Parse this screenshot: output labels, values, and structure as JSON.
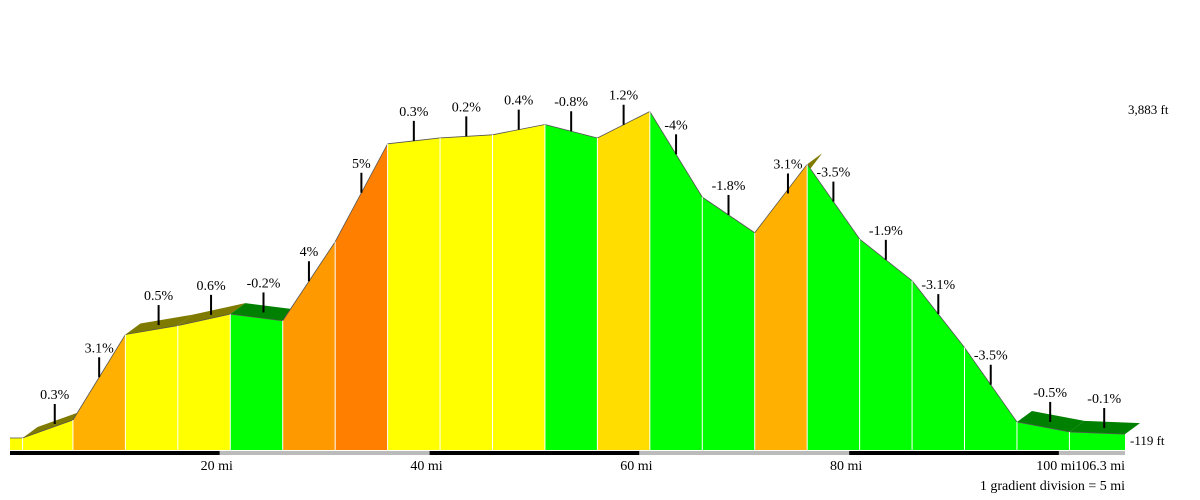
{
  "chart_data": {
    "type": "area",
    "title": "",
    "xlabel": "",
    "ylabel": "",
    "x_unit": "mi",
    "y_unit": "ft",
    "x_range": [
      0,
      106.3
    ],
    "y_range": [
      -119,
      3883
    ],
    "elevation_labels": [
      "3,883 ft",
      "-119 ft"
    ],
    "x_tick_labels": [
      {
        "x": 20,
        "label": "20 mi"
      },
      {
        "x": 40,
        "label": "40 mi"
      },
      {
        "x": 60,
        "label": "60 mi"
      },
      {
        "x": 80,
        "label": "80 mi"
      },
      {
        "x": 100,
        "label": "100 mi"
      },
      {
        "x": 106.3,
        "label": "106.3 mi"
      }
    ],
    "footnote": "1 gradient division = 5 mi",
    "division_mi": 5,
    "profile": [
      {
        "x": 0,
        "y": -119
      },
      {
        "x": 1.2,
        "y": -119
      },
      {
        "x": 6,
        "y": 94
      },
      {
        "x": 11,
        "y": 1106
      },
      {
        "x": 16,
        "y": 1212
      },
      {
        "x": 21,
        "y": 1348
      },
      {
        "x": 26,
        "y": 1269
      },
      {
        "x": 31,
        "y": 2205
      },
      {
        "x": 36,
        "y": 3364
      },
      {
        "x": 41,
        "y": 3434
      },
      {
        "x": 46,
        "y": 3471
      },
      {
        "x": 51,
        "y": 3593
      },
      {
        "x": 56,
        "y": 3433
      },
      {
        "x": 61,
        "y": 3747
      },
      {
        "x": 66,
        "y": 2733
      },
      {
        "x": 71,
        "y": 2311
      },
      {
        "x": 76,
        "y": 3123
      },
      {
        "x": 81,
        "y": 2237
      },
      {
        "x": 86,
        "y": 1744
      },
      {
        "x": 91,
        "y": 952
      },
      {
        "x": 96,
        "y": 71
      },
      {
        "x": 101,
        "y": -47
      },
      {
        "x": 106.3,
        "y": -73
      }
    ],
    "segments": [
      {
        "x0": 0,
        "x1": 1.2,
        "grade": "",
        "color": "#ffff00",
        "side": false
      },
      {
        "x0": 1.2,
        "x1": 6,
        "grade": "0.3%",
        "color": "#ffff00",
        "side": true
      },
      {
        "x0": 6,
        "x1": 11,
        "grade": "3.1%",
        "color": "#ffb000",
        "side": false
      },
      {
        "x0": 11,
        "x1": 16,
        "grade": "0.5%",
        "color": "#ffff00",
        "side": true
      },
      {
        "x0": 16,
        "x1": 21,
        "grade": "0.6%",
        "color": "#ffff00",
        "side": true
      },
      {
        "x0": 21,
        "x1": 26,
        "grade": "-0.2%",
        "color": "#00ff00",
        "side": true
      },
      {
        "x0": 26,
        "x1": 31,
        "grade": "4%",
        "color": "#ff9900",
        "side": false
      },
      {
        "x0": 31,
        "x1": 36,
        "grade": "5%",
        "color": "#ff8000",
        "side": false
      },
      {
        "x0": 36,
        "x1": 41,
        "grade": "0.3%",
        "color": "#ffff00",
        "side": false
      },
      {
        "x0": 41,
        "x1": 46,
        "grade": "0.2%",
        "color": "#ffff00",
        "side": false
      },
      {
        "x0": 46,
        "x1": 51,
        "grade": "0.4%",
        "color": "#ffff00",
        "side": false
      },
      {
        "x0": 51,
        "x1": 56,
        "grade": "-0.8%",
        "color": "#00ff00",
        "side": false
      },
      {
        "x0": 56,
        "x1": 61,
        "grade": "1.2%",
        "color": "#ffdd00",
        "side": false
      },
      {
        "x0": 61,
        "x1": 66,
        "grade": "-4%",
        "color": "#00ff00",
        "side": false
      },
      {
        "x0": 66,
        "x1": 71,
        "grade": "-1.8%",
        "color": "#00ff00",
        "side": false
      },
      {
        "x0": 71,
        "x1": 76,
        "grade": "3.1%",
        "color": "#ffb000",
        "side": true
      },
      {
        "x0": 76,
        "x1": 81,
        "grade": "-3.5%",
        "color": "#00ff00",
        "side": false
      },
      {
        "x0": 81,
        "x1": 86,
        "grade": "-1.9%",
        "color": "#00ff00",
        "side": false
      },
      {
        "x0": 86,
        "x1": 91,
        "grade": "-3.1%",
        "color": "#00ff00",
        "side": false
      },
      {
        "x0": 91,
        "x1": 96,
        "grade": "-3.5%",
        "color": "#00ff00",
        "side": false
      },
      {
        "x0": 96,
        "x1": 101,
        "grade": "-0.5%",
        "color": "#00ff00",
        "side": true
      },
      {
        "x0": 101,
        "x1": 106.3,
        "grade": "-0.1%",
        "color": "#00ff00",
        "side": true
      }
    ],
    "colors": {
      "side_uphill": "#7f7a00",
      "side_downhill": "#008000",
      "divider": "#ffffff",
      "ridge": "#555555",
      "bar_dark": "#000000",
      "bar_light": "#bbbbbb"
    }
  }
}
